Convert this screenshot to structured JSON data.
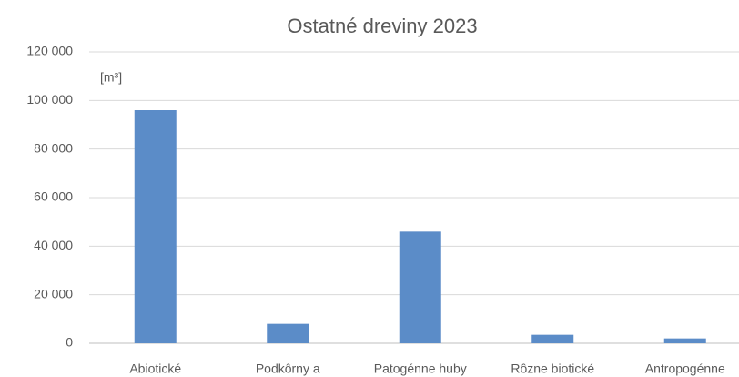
{
  "chart_data": {
    "type": "bar",
    "title": "Ostatné dreviny 2023",
    "unit_label": "[m³]",
    "categories": [
      "Abiotické",
      "Podkôrny a",
      "Patogénne huby",
      "Rôzne biotické",
      "Antropogénne"
    ],
    "values": [
      96000,
      8000,
      46000,
      3500,
      2000
    ],
    "color": "#5b8cc8",
    "ylim": [
      0,
      120000
    ],
    "yticks": [
      0,
      {
        "value": 20000,
        "label": "20 000"
      },
      {
        "value": 40000,
        "label": "40 000"
      },
      {
        "value": 60000,
        "label": "60 000"
      },
      {
        "value": 80000,
        "label": "80 000"
      },
      {
        "value": 100000,
        "label": "100 000"
      },
      {
        "value": 120000,
        "label": "120 000"
      }
    ],
    "grid": true
  }
}
